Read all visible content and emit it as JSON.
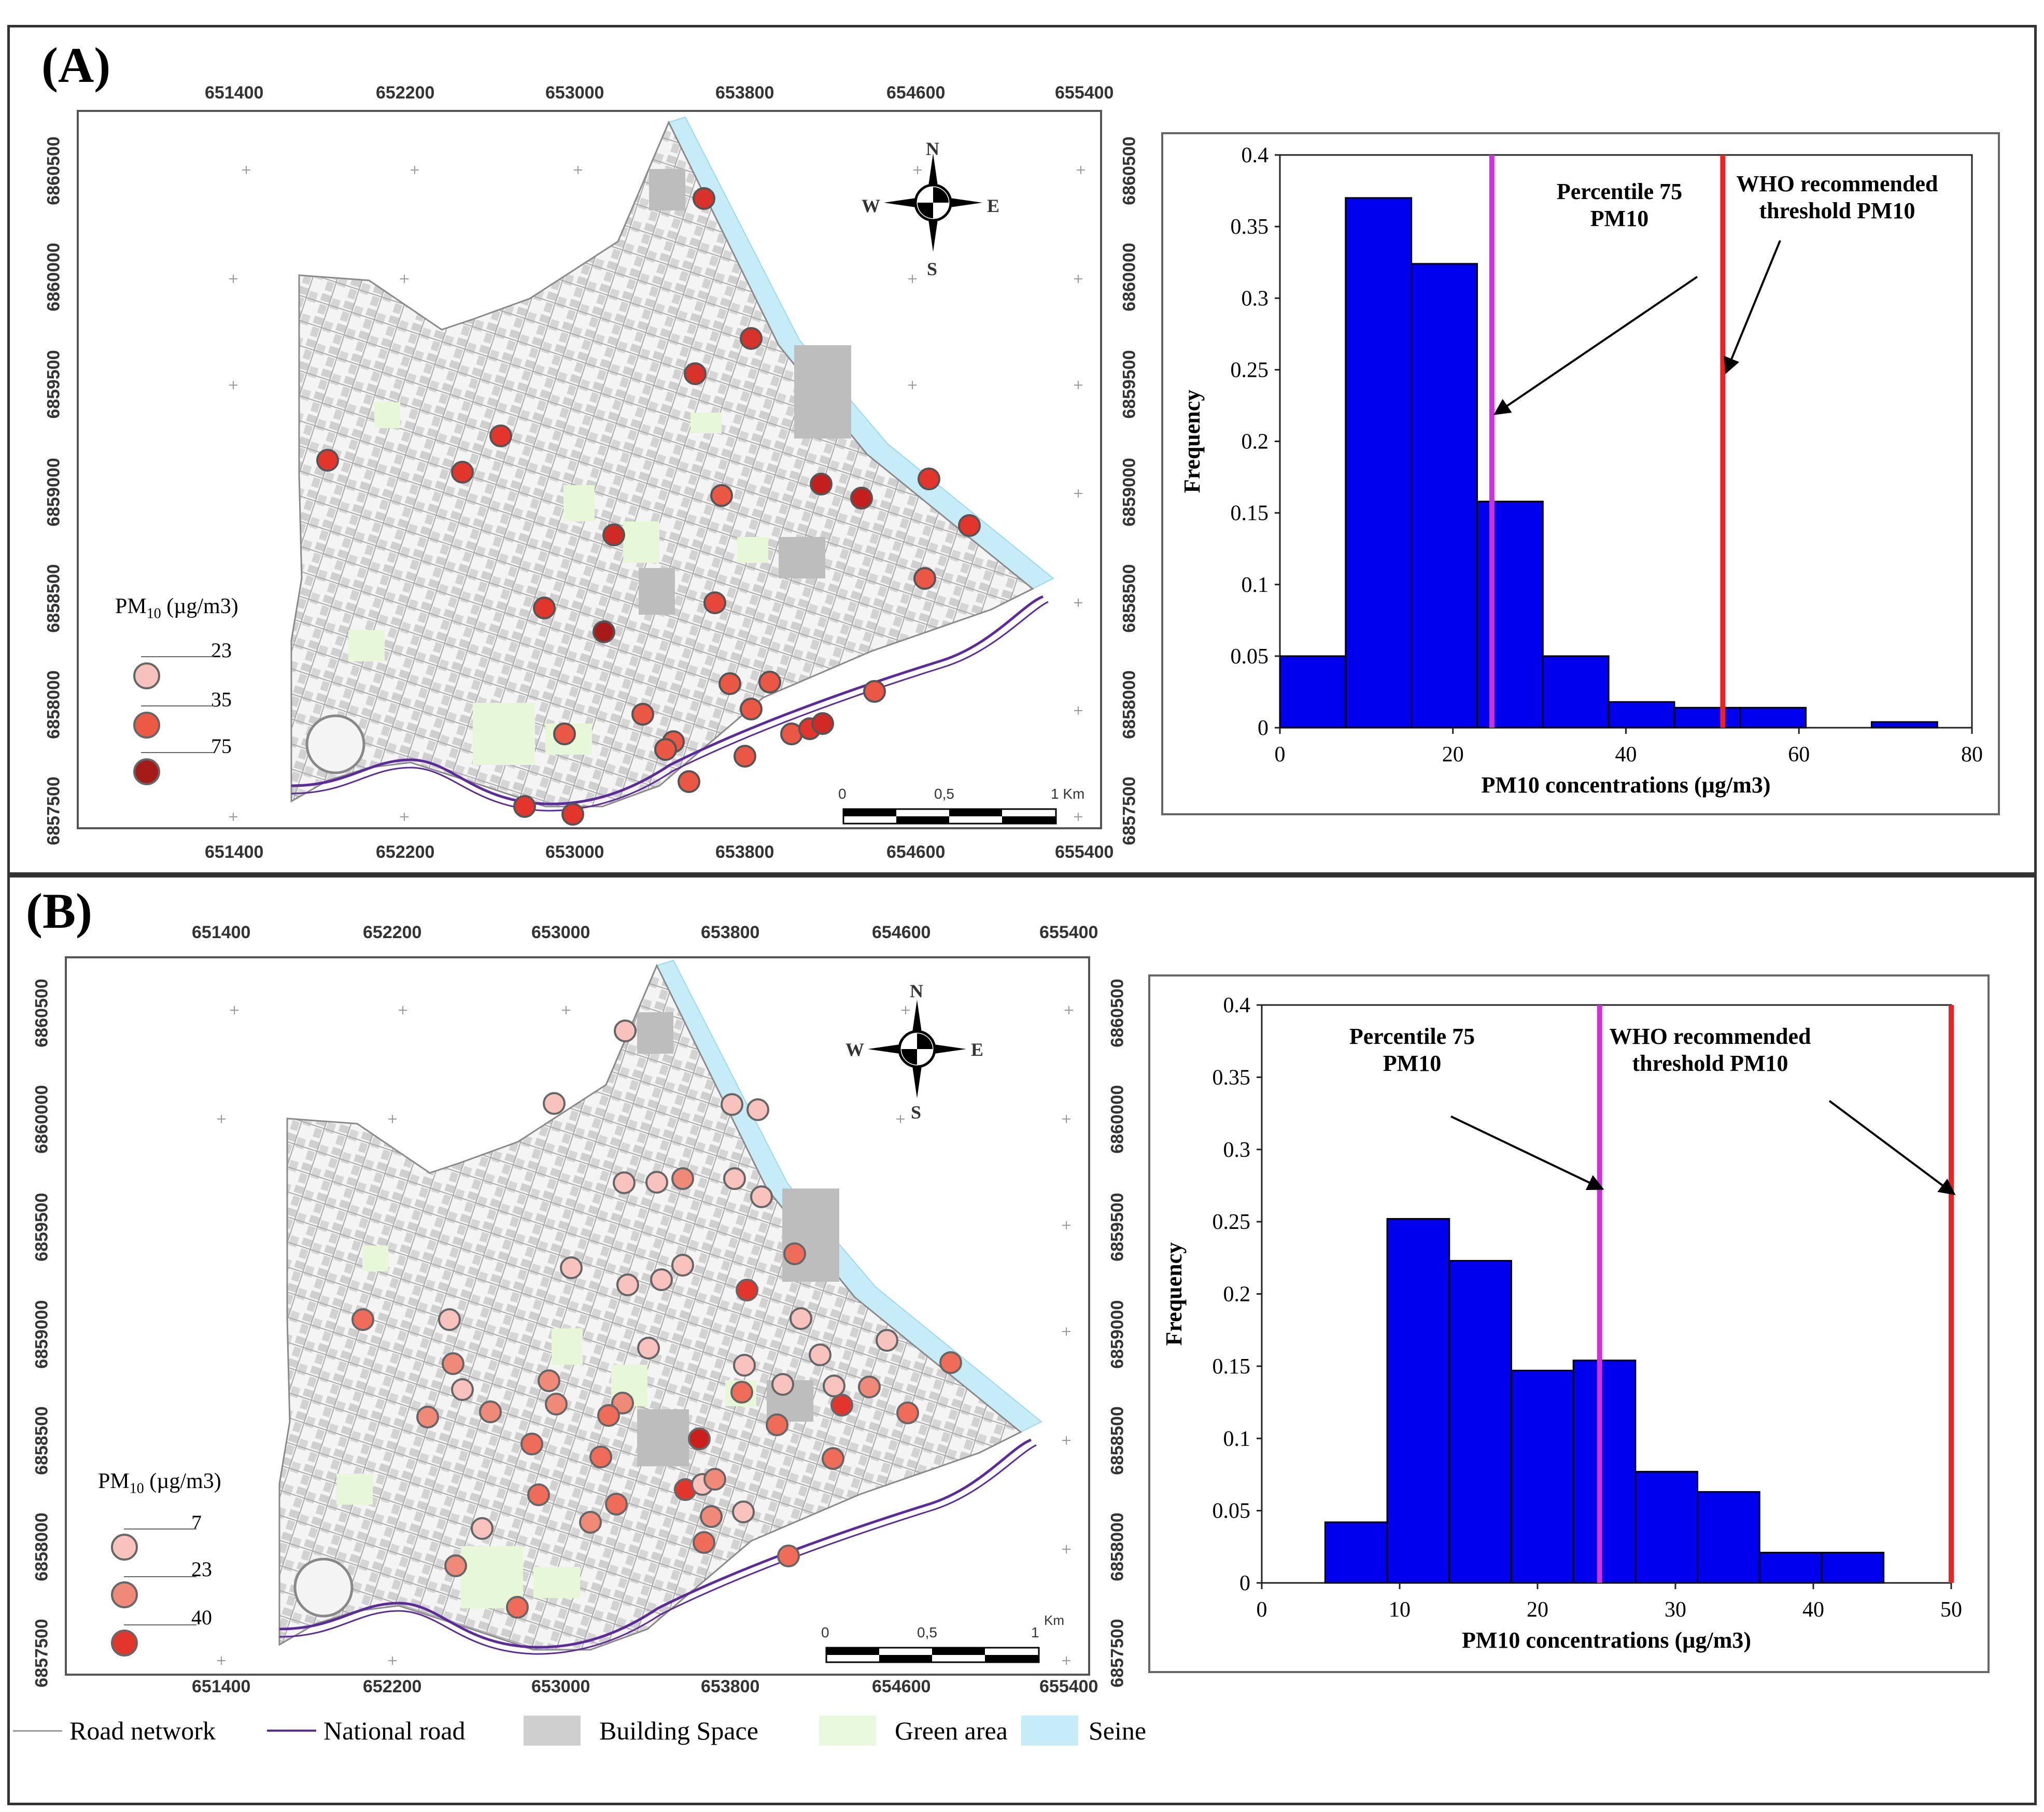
{
  "panel_a": {
    "letter": "(A)",
    "map": {
      "x_ticks": [
        "651400",
        "652200",
        "653000",
        "653800",
        "654600",
        "655400"
      ],
      "y_ticks": [
        "6860500",
        "6860000",
        "6859500",
        "6859000",
        "6858500",
        "6858000",
        "6857500"
      ],
      "legend_title": "PM",
      "legend_sub": "10",
      "legend_unit": " (µg/m3)",
      "legend_values": [
        "23",
        "35",
        "75"
      ],
      "legend_colors": [
        "#f6c2bb",
        "#ec5a45",
        "#a61a19"
      ],
      "scalebar_labels": [
        "0",
        "0,5",
        "1 Km"
      ]
    }
  },
  "panel_b": {
    "letter": "(B)",
    "map": {
      "x_ticks": [
        "651400",
        "652200",
        "653000",
        "653800",
        "654600",
        "655400"
      ],
      "y_ticks": [
        "6860500",
        "6860000",
        "6859500",
        "6859000",
        "6858500",
        "6858000",
        "6857500"
      ],
      "legend_title": "PM",
      "legend_sub": "10",
      "legend_unit": " (µg/m3)",
      "legend_values": [
        "7",
        "23",
        "40"
      ],
      "legend_colors": [
        "#f8c2bd",
        "#ef8a78",
        "#e2362c"
      ],
      "scalebar_labels": [
        "0",
        "0,5",
        "1",
        "Km"
      ]
    }
  },
  "compass": {
    "n": "N",
    "s": "S",
    "e": "E",
    "w": "W"
  },
  "bottom_legend": [
    {
      "label": "Road network",
      "color": "#999999",
      "kind": "line"
    },
    {
      "label": "National road",
      "color": "#5b2a9c",
      "kind": "line"
    },
    {
      "label": "Building Space",
      "color": "#cfcfcf",
      "kind": "box"
    },
    {
      "label": "Green area",
      "color": "#e9f9dd",
      "kind": "box"
    },
    {
      "label": "Seine",
      "color": "#c6ecf7",
      "kind": "box"
    }
  ],
  "chart_data": [
    {
      "type": "bar",
      "title": "",
      "xlabel": "PM10  concentrations  (µg/m3)",
      "ylabel": "Frequency",
      "xlim": [
        0,
        80
      ],
      "ylim": [
        0,
        0.4
      ],
      "x_ticks": [
        "0",
        "20",
        "40",
        "60",
        "80"
      ],
      "y_ticks": [
        "0",
        "0.05",
        "0.1",
        "0.15",
        "0.2",
        "0.25",
        "0.3",
        "0.35",
        "0.4"
      ],
      "bins": [
        {
          "from": 0,
          "to": 7.6,
          "value": 0.05
        },
        {
          "from": 7.6,
          "to": 15.2,
          "value": 0.37
        },
        {
          "from": 15.2,
          "to": 22.8,
          "value": 0.324
        },
        {
          "from": 22.8,
          "to": 30.4,
          "value": 0.158
        },
        {
          "from": 30.4,
          "to": 38,
          "value": 0.05
        },
        {
          "from": 38,
          "to": 45.6,
          "value": 0.018
        },
        {
          "from": 45.6,
          "to": 53.2,
          "value": 0.014
        },
        {
          "from": 53.2,
          "to": 60.8,
          "value": 0.014
        },
        {
          "from": 60.8,
          "to": 68.4,
          "value": 0
        },
        {
          "from": 68.4,
          "to": 76,
          "value": 0.004
        }
      ],
      "bar_color": "#0000ee",
      "lines": [
        {
          "name": "Percentile 75 PM10",
          "x": 24.5,
          "color": "#cc33dd",
          "label": [
            "Percentile 75",
            "PM10"
          ]
        },
        {
          "name": "WHO recommended threshold PM10",
          "x": 51.2,
          "color": "#ee2222",
          "label": [
            "WHO recommended",
            "threshold PM10"
          ]
        }
      ]
    },
    {
      "type": "bar",
      "title": "",
      "xlabel": "PM10  concentrations  (µg/m3)",
      "ylabel": "Frequency",
      "xlim": [
        0,
        50
      ],
      "ylim": [
        0,
        0.4
      ],
      "x_ticks": [
        "0",
        "10",
        "20",
        "30",
        "40",
        "50"
      ],
      "y_ticks": [
        "0",
        "0.05",
        "0.1",
        "0.15",
        "0.2",
        "0.25",
        "0.3",
        "0.35",
        "0.4"
      ],
      "bins": [
        {
          "from": 4.6,
          "to": 9.1,
          "value": 0.042
        },
        {
          "from": 9.1,
          "to": 13.6,
          "value": 0.252
        },
        {
          "from": 13.6,
          "to": 18.1,
          "value": 0.223
        },
        {
          "from": 18.1,
          "to": 22.6,
          "value": 0.147
        },
        {
          "from": 22.6,
          "to": 27.1,
          "value": 0.154
        },
        {
          "from": 27.1,
          "to": 31.6,
          "value": 0.077
        },
        {
          "from": 31.6,
          "to": 36.1,
          "value": 0.063
        },
        {
          "from": 36.1,
          "to": 40.6,
          "value": 0.021
        },
        {
          "from": 40.6,
          "to": 45.1,
          "value": 0.021
        }
      ],
      "bar_color": "#0000ee",
      "lines": [
        {
          "name": "Percentile 75 PM10",
          "x": 24.5,
          "color": "#cc33dd",
          "label": [
            "Percentile 75",
            "PM10"
          ]
        },
        {
          "name": "WHO recommended threshold PM10",
          "x": 50,
          "color": "#ee2222",
          "label": [
            "WHO recommended",
            "threshold PM10"
          ]
        }
      ]
    }
  ]
}
